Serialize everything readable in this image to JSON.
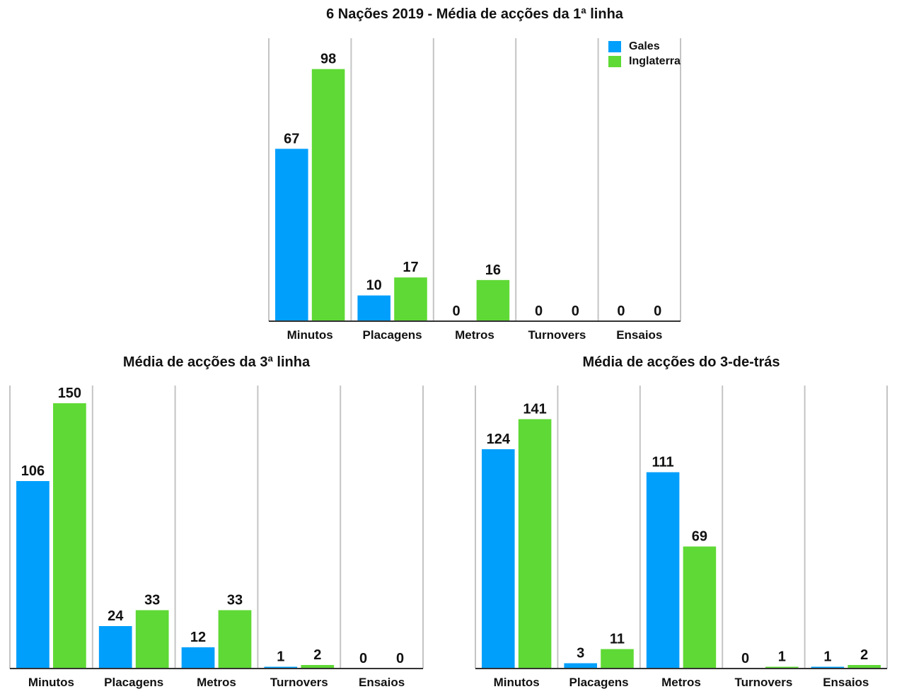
{
  "colors": {
    "gales": "#009ffc",
    "inglaterra": "#5fd935",
    "grid": "#c4c4c4",
    "axis": "#333333",
    "text": "#111111"
  },
  "legend": {
    "gales_label": "Gales",
    "inglaterra_label": "Inglaterra"
  },
  "chart_data": [
    {
      "type": "bar",
      "title": "6 Nações 2019 - Média de acções da 1ª linha",
      "categories": [
        "Minutos",
        "Placagens",
        "Metros",
        "Turnovers",
        "Ensaios"
      ],
      "series": [
        {
          "name": "Gales",
          "values": [
            67,
            10,
            0,
            0,
            0
          ]
        },
        {
          "name": "Inglaterra",
          "values": [
            98,
            17,
            16,
            0,
            0
          ]
        }
      ],
      "ylim": [
        0,
        110
      ],
      "legend_position": "top-right"
    },
    {
      "type": "bar",
      "title": "Média de acções da 3ª linha",
      "categories": [
        "Minutos",
        "Placagens",
        "Metros",
        "Turnovers",
        "Ensaios"
      ],
      "series": [
        {
          "name": "Gales",
          "values": [
            106,
            24,
            12,
            1,
            0
          ]
        },
        {
          "name": "Inglaterra",
          "values": [
            150,
            33,
            33,
            2,
            0
          ]
        }
      ],
      "ylim": [
        0,
        160
      ]
    },
    {
      "type": "bar",
      "title": "Média de acções do 3-de-trás",
      "categories": [
        "Minutos",
        "Placagens",
        "Metros",
        "Turnovers",
        "Ensaios"
      ],
      "series": [
        {
          "name": "Gales",
          "values": [
            124,
            3,
            111,
            0,
            1
          ]
        },
        {
          "name": "Inglaterra",
          "values": [
            141,
            11,
            69,
            1,
            2
          ]
        }
      ],
      "ylim": [
        0,
        160
      ]
    }
  ]
}
